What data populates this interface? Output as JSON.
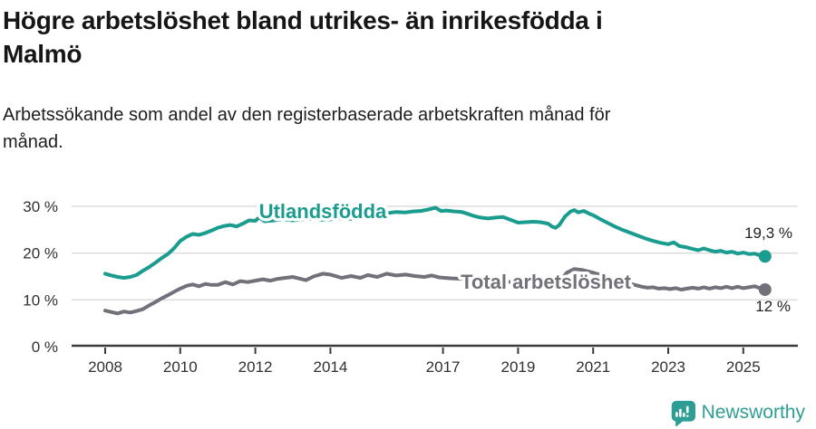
{
  "title": "Högre arbetslöshet bland utrikes- än inrikesfödda i Malmö",
  "title_lines": [
    "Högre arbetslöshet bland utrikes- än inrikesfödda i",
    "Malmö"
  ],
  "subtitle": "Arbetssökande som andel av den registerbaserade arbetskraften månad för månad.",
  "subtitle_lines": [
    "Arbetssökande som andel av den registerbaserade arbetskraften månad för",
    "månad."
  ],
  "branding": {
    "name": "Newsworthy",
    "icon": "newsworthy-speech-bubble-bar-chart-icon",
    "color": "#2E9E94"
  },
  "colors": {
    "background": "#ffffff",
    "title_text": "#161616",
    "axis_text": "#303030",
    "gridline": "#dadada",
    "series_utlandsfodda": "#1A9C8E",
    "series_total": "#72717A"
  },
  "chart_data": {
    "type": "line",
    "title": "Högre arbetslöshet bland utrikes- än inrikesfödda i Malmö",
    "subtitle": "Arbetssökande som andel av den registerbaserade arbetskraften månad för månad.",
    "xlabel": "",
    "ylabel": "",
    "grid": "horizontal",
    "legend": "inline-labels",
    "xlim": [
      2007.6,
      2026.4
    ],
    "ylim": [
      0,
      32
    ],
    "x_ticks": [
      2008,
      2010,
      2012,
      2014,
      2017,
      2019,
      2021,
      2023,
      2025
    ],
    "y_ticks": [
      {
        "value": 0,
        "label": "0 %"
      },
      {
        "value": 10,
        "label": "10 %"
      },
      {
        "value": 20,
        "label": "20 %"
      },
      {
        "value": 30,
        "label": "30 %"
      }
    ],
    "series": [
      {
        "name": "Utlandsfödda",
        "color": "#1A9C8E",
        "end_label": "19,3 %",
        "end_value": 19.3,
        "points": [
          [
            2008.0,
            15.6
          ],
          [
            2008.17,
            15.2
          ],
          [
            2008.33,
            14.9
          ],
          [
            2008.5,
            14.7
          ],
          [
            2008.67,
            14.9
          ],
          [
            2008.83,
            15.3
          ],
          [
            2009.0,
            16.2
          ],
          [
            2009.17,
            17.0
          ],
          [
            2009.33,
            17.9
          ],
          [
            2009.5,
            18.9
          ],
          [
            2009.67,
            19.8
          ],
          [
            2009.83,
            21.0
          ],
          [
            2010.0,
            22.6
          ],
          [
            2010.17,
            23.5
          ],
          [
            2010.33,
            24.1
          ],
          [
            2010.5,
            23.9
          ],
          [
            2010.67,
            24.3
          ],
          [
            2010.83,
            24.8
          ],
          [
            2011.0,
            25.4
          ],
          [
            2011.17,
            25.8
          ],
          [
            2011.33,
            26.0
          ],
          [
            2011.5,
            25.7
          ],
          [
            2011.67,
            26.3
          ],
          [
            2011.83,
            27.0
          ],
          [
            2012.0,
            26.9
          ],
          [
            2012.1,
            27.6
          ],
          [
            2012.25,
            26.8
          ],
          [
            2012.5,
            27.0
          ],
          [
            2012.75,
            27.2
          ],
          [
            2013.0,
            27.0
          ],
          [
            2013.25,
            27.2
          ],
          [
            2013.5,
            27.3
          ],
          [
            2013.75,
            27.1
          ],
          [
            2014.0,
            27.2
          ],
          [
            2014.25,
            27.4
          ],
          [
            2014.5,
            27.3
          ],
          [
            2014.75,
            27.5
          ],
          [
            2015.0,
            27.8
          ],
          [
            2015.25,
            28.1
          ],
          [
            2015.5,
            28.5
          ],
          [
            2015.75,
            28.8
          ],
          [
            2016.0,
            28.7
          ],
          [
            2016.2,
            28.9
          ],
          [
            2016.4,
            29.0
          ],
          [
            2016.6,
            29.3
          ],
          [
            2016.8,
            29.7
          ],
          [
            2016.95,
            29.0
          ],
          [
            2017.1,
            29.1
          ],
          [
            2017.3,
            28.9
          ],
          [
            2017.5,
            28.8
          ],
          [
            2017.65,
            28.4
          ],
          [
            2017.8,
            28.0
          ],
          [
            2018.0,
            27.6
          ],
          [
            2018.2,
            27.4
          ],
          [
            2018.4,
            27.6
          ],
          [
            2018.6,
            27.7
          ],
          [
            2018.8,
            27.1
          ],
          [
            2019.0,
            26.5
          ],
          [
            2019.2,
            26.6
          ],
          [
            2019.4,
            26.7
          ],
          [
            2019.6,
            26.6
          ],
          [
            2019.8,
            26.3
          ],
          [
            2019.9,
            25.7
          ],
          [
            2020.0,
            25.4
          ],
          [
            2020.1,
            26.0
          ],
          [
            2020.25,
            27.8
          ],
          [
            2020.4,
            28.9
          ],
          [
            2020.5,
            29.2
          ],
          [
            2020.6,
            28.7
          ],
          [
            2020.75,
            29.0
          ],
          [
            2020.9,
            28.4
          ],
          [
            2021.0,
            28.1
          ],
          [
            2021.2,
            27.2
          ],
          [
            2021.4,
            26.4
          ],
          [
            2021.6,
            25.6
          ],
          [
            2021.8,
            24.9
          ],
          [
            2022.0,
            24.3
          ],
          [
            2022.2,
            23.7
          ],
          [
            2022.4,
            23.1
          ],
          [
            2022.6,
            22.6
          ],
          [
            2022.8,
            22.2
          ],
          [
            2023.0,
            21.9
          ],
          [
            2023.15,
            22.3
          ],
          [
            2023.3,
            21.5
          ],
          [
            2023.5,
            21.2
          ],
          [
            2023.65,
            20.9
          ],
          [
            2023.8,
            20.6
          ],
          [
            2023.95,
            21.0
          ],
          [
            2024.1,
            20.6
          ],
          [
            2024.25,
            20.3
          ],
          [
            2024.4,
            20.5
          ],
          [
            2024.55,
            20.1
          ],
          [
            2024.7,
            20.3
          ],
          [
            2024.85,
            19.9
          ],
          [
            2025.0,
            20.1
          ],
          [
            2025.15,
            19.8
          ],
          [
            2025.3,
            19.9
          ],
          [
            2025.45,
            19.5
          ],
          [
            2025.58,
            19.3
          ]
        ]
      },
      {
        "name": "Total arbetslöshet",
        "color": "#72717A",
        "end_label": "12 %",
        "end_value": 12,
        "points": [
          [
            2008.0,
            7.7
          ],
          [
            2008.17,
            7.4
          ],
          [
            2008.33,
            7.1
          ],
          [
            2008.5,
            7.5
          ],
          [
            2008.67,
            7.3
          ],
          [
            2008.83,
            7.6
          ],
          [
            2009.0,
            8.0
          ],
          [
            2009.17,
            8.8
          ],
          [
            2009.33,
            9.5
          ],
          [
            2009.5,
            10.3
          ],
          [
            2009.67,
            11.0
          ],
          [
            2009.83,
            11.7
          ],
          [
            2010.0,
            12.4
          ],
          [
            2010.17,
            13.0
          ],
          [
            2010.33,
            13.3
          ],
          [
            2010.5,
            12.9
          ],
          [
            2010.67,
            13.4
          ],
          [
            2010.83,
            13.2
          ],
          [
            2011.0,
            13.2
          ],
          [
            2011.2,
            13.8
          ],
          [
            2011.4,
            13.3
          ],
          [
            2011.6,
            14.0
          ],
          [
            2011.8,
            13.8
          ],
          [
            2012.0,
            14.1
          ],
          [
            2012.2,
            14.4
          ],
          [
            2012.4,
            14.1
          ],
          [
            2012.6,
            14.5
          ],
          [
            2012.8,
            14.7
          ],
          [
            2013.0,
            14.9
          ],
          [
            2013.2,
            14.5
          ],
          [
            2013.35,
            14.2
          ],
          [
            2013.55,
            15.0
          ],
          [
            2013.8,
            15.6
          ],
          [
            2014.0,
            15.4
          ],
          [
            2014.3,
            14.7
          ],
          [
            2014.55,
            15.1
          ],
          [
            2014.8,
            14.7
          ],
          [
            2015.0,
            15.3
          ],
          [
            2015.25,
            14.9
          ],
          [
            2015.5,
            15.6
          ],
          [
            2015.75,
            15.2
          ],
          [
            2016.0,
            15.4
          ],
          [
            2016.25,
            15.1
          ],
          [
            2016.5,
            14.9
          ],
          [
            2016.7,
            15.2
          ],
          [
            2016.9,
            14.8
          ],
          [
            2017.2,
            14.6
          ],
          [
            2017.5,
            14.5
          ],
          [
            2018.0,
            14.2
          ],
          [
            2018.5,
            14.0
          ],
          [
            2019.0,
            13.7
          ],
          [
            2019.5,
            13.6
          ],
          [
            2019.9,
            13.3
          ],
          [
            2020.1,
            13.9
          ],
          [
            2020.3,
            15.8
          ],
          [
            2020.5,
            16.6
          ],
          [
            2020.7,
            16.4
          ],
          [
            2021.0,
            15.8
          ],
          [
            2021.5,
            14.6
          ],
          [
            2022.0,
            13.4
          ],
          [
            2022.3,
            12.8
          ],
          [
            2022.45,
            12.6
          ],
          [
            2022.6,
            12.7
          ],
          [
            2022.75,
            12.4
          ],
          [
            2022.9,
            12.5
          ],
          [
            2023.05,
            12.3
          ],
          [
            2023.2,
            12.5
          ],
          [
            2023.35,
            12.2
          ],
          [
            2023.5,
            12.4
          ],
          [
            2023.65,
            12.6
          ],
          [
            2023.8,
            12.4
          ],
          [
            2023.95,
            12.7
          ],
          [
            2024.1,
            12.4
          ],
          [
            2024.25,
            12.7
          ],
          [
            2024.4,
            12.5
          ],
          [
            2024.55,
            12.8
          ],
          [
            2024.7,
            12.5
          ],
          [
            2024.85,
            12.8
          ],
          [
            2025.0,
            12.5
          ],
          [
            2025.15,
            12.7
          ],
          [
            2025.3,
            12.9
          ],
          [
            2025.45,
            12.5
          ],
          [
            2025.58,
            12.2
          ]
        ]
      }
    ]
  }
}
